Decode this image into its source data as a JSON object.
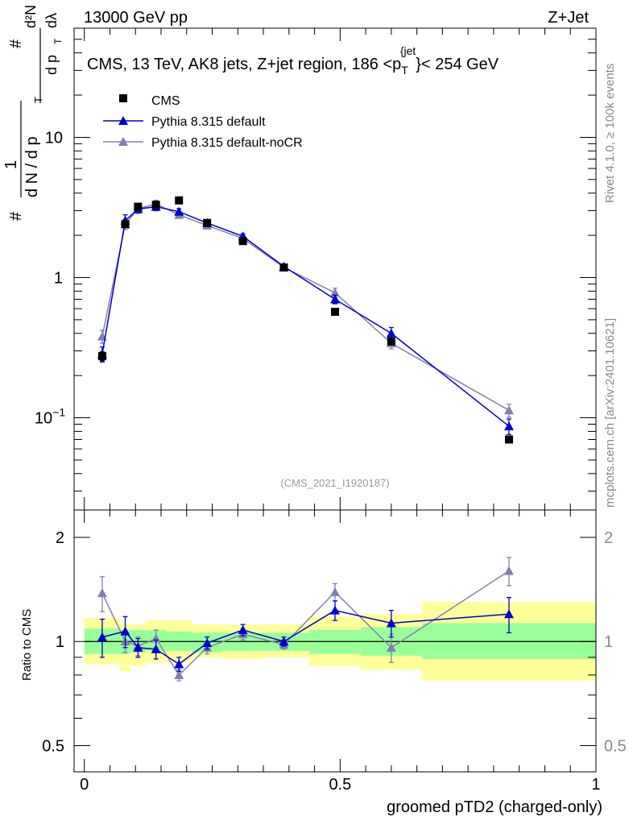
{
  "header": {
    "left": "13000 GeV pp",
    "right": "Z+Jet"
  },
  "side_labels": {
    "rivet": "Rivet 4.1.0, ≥ 100k events",
    "mcplots": "mcplots.cern.ch [arXiv:2401.10621]"
  },
  "watermark": "(CMS_2021_I1920187)",
  "colors": {
    "cms": "#000000",
    "default": "#0000cc",
    "nocr": "#8080b0",
    "band_inner": "#99ff99",
    "band_outer": "#ffff99"
  },
  "chart_data": [
    {
      "type": "scatter",
      "title": "CMS, 13 TeV, AK8 jets, Z+jet region, 186 <p_T^{jet}< 254 GeV",
      "title_parts": {
        "pre": "CMS, 13 TeV, AK8 jets, Z+jet region, 186 <p",
        "sub": "T",
        "sup": "{jet",
        "post": "}< 254 GeV"
      },
      "ylabel": "1/dN/dpT dN²/dpT dλ",
      "ylabel_parts": {
        "hash": "#",
        "one": "1",
        "den": "d N / d p",
        "num": "d²N",
        "den2": "d p",
        "lambda": "dλ",
        "t": "T"
      },
      "yscale": "log",
      "ylim": [
        0.022,
        60
      ],
      "xlim": [
        -0.02,
        1.0
      ],
      "grid": false,
      "y_ticks": [
        {
          "value": 0.1,
          "base": "10",
          "exp": "−1"
        },
        {
          "value": 1,
          "base": "1",
          "exp": ""
        },
        {
          "value": 10,
          "base": "10",
          "exp": ""
        }
      ],
      "legend": {
        "placement": "top-left",
        "entries": [
          "CMS",
          "Pythia 8.315 default",
          "Pythia 8.315 default-noCR"
        ]
      },
      "series": [
        {
          "name": "CMS",
          "marker": "square",
          "x": [
            0.035,
            0.08,
            0.105,
            0.14,
            0.185,
            0.24,
            0.31,
            0.39,
            0.49,
            0.6,
            0.83
          ],
          "y": [
            0.275,
            2.4,
            3.2,
            3.3,
            3.55,
            2.45,
            1.82,
            1.18,
            0.57,
            0.35,
            0.07
          ],
          "yerr": [
            0.02,
            0.1,
            0.1,
            0.1,
            0.1,
            0.08,
            0.06,
            0.04,
            0.02,
            0.015,
            0.003
          ]
        },
        {
          "name": "Pythia 8.315 default",
          "marker": "triangle",
          "x": [
            0.035,
            0.08,
            0.105,
            0.14,
            0.185,
            0.24,
            0.31,
            0.39,
            0.49,
            0.6,
            0.83
          ],
          "y": [
            0.285,
            2.55,
            3.08,
            3.2,
            2.95,
            2.45,
            1.97,
            1.2,
            0.7,
            0.4,
            0.087
          ],
          "yerr": [
            0.035,
            0.25,
            0.2,
            0.2,
            0.15,
            0.1,
            0.08,
            0.05,
            0.05,
            0.04,
            0.011
          ]
        },
        {
          "name": "Pythia 8.315 default-noCR",
          "marker": "triangle",
          "x": [
            0.035,
            0.08,
            0.105,
            0.14,
            0.185,
            0.24,
            0.31,
            0.39,
            0.49,
            0.6,
            0.83
          ],
          "y": [
            0.38,
            2.4,
            3.1,
            3.35,
            2.8,
            2.35,
            1.9,
            1.18,
            0.78,
            0.34,
            0.113
          ],
          "yerr": [
            0.04,
            0.2,
            0.2,
            0.2,
            0.15,
            0.1,
            0.08,
            0.05,
            0.06,
            0.03,
            0.012
          ]
        }
      ]
    },
    {
      "type": "scatter",
      "title": "",
      "ylabel": "Ratio to CMS",
      "xlabel": "groomed pTD2 (charged-only)",
      "yscale": "log",
      "ylim": [
        0.42,
        2.4
      ],
      "xlim": [
        -0.02,
        1.0
      ],
      "reference_line": 1.0,
      "y_ticks": [
        {
          "value": 0.5,
          "label": "0.5"
        },
        {
          "value": 1,
          "label": "1"
        },
        {
          "value": 2,
          "label": "2"
        }
      ],
      "x_ticks": [
        {
          "value": 0,
          "label": "0"
        },
        {
          "value": 0.5,
          "label": "0.5"
        },
        {
          "value": 1,
          "label": "1"
        }
      ],
      "bands": [
        {
          "x0": 0.0,
          "x1": 0.07,
          "inner": [
            0.92,
            1.09
          ],
          "outer": [
            0.86,
            1.17
          ]
        },
        {
          "x0": 0.07,
          "x1": 0.09,
          "inner": [
            0.92,
            1.08
          ],
          "outer": [
            0.82,
            1.13
          ]
        },
        {
          "x0": 0.09,
          "x1": 0.12,
          "inner": [
            0.93,
            1.08
          ],
          "outer": [
            0.85,
            1.12
          ]
        },
        {
          "x0": 0.12,
          "x1": 0.16,
          "inner": [
            0.94,
            1.08
          ],
          "outer": [
            0.87,
            1.15
          ]
        },
        {
          "x0": 0.16,
          "x1": 0.21,
          "inner": [
            0.94,
            1.07
          ],
          "outer": [
            0.87,
            1.15
          ]
        },
        {
          "x0": 0.21,
          "x1": 0.27,
          "inner": [
            0.93,
            1.06
          ],
          "outer": [
            0.9,
            1.12
          ]
        },
        {
          "x0": 0.27,
          "x1": 0.35,
          "inner": [
            0.94,
            1.06
          ],
          "outer": [
            0.89,
            1.12
          ]
        },
        {
          "x0": 0.35,
          "x1": 0.44,
          "inner": [
            0.94,
            1.06
          ],
          "outer": [
            0.9,
            1.12
          ]
        },
        {
          "x0": 0.44,
          "x1": 0.54,
          "inner": [
            0.92,
            1.08
          ],
          "outer": [
            0.85,
            1.18
          ]
        },
        {
          "x0": 0.54,
          "x1": 0.66,
          "inner": [
            0.91,
            1.1
          ],
          "outer": [
            0.83,
            1.2
          ]
        },
        {
          "x0": 0.66,
          "x1": 1.0,
          "inner": [
            0.89,
            1.13
          ],
          "outer": [
            0.77,
            1.3
          ]
        }
      ],
      "series": [
        {
          "name": "Pythia 8.315 default",
          "x": [
            0.035,
            0.08,
            0.105,
            0.14,
            0.185,
            0.24,
            0.31,
            0.39,
            0.49,
            0.6,
            0.83
          ],
          "y": [
            1.03,
            1.07,
            0.96,
            0.95,
            0.86,
            0.99,
            1.08,
            1.0,
            1.23,
            1.13,
            1.2
          ],
          "yerr": [
            0.13,
            0.11,
            0.06,
            0.06,
            0.04,
            0.04,
            0.04,
            0.03,
            0.08,
            0.1,
            0.14
          ]
        },
        {
          "name": "Pythia 8.315 default-noCR",
          "x": [
            0.035,
            0.08,
            0.105,
            0.14,
            0.185,
            0.24,
            0.31,
            0.39,
            0.49,
            0.6,
            0.83
          ],
          "y": [
            1.38,
            1.0,
            0.97,
            1.02,
            0.8,
            0.96,
            1.05,
            0.98,
            1.39,
            0.96,
            1.6
          ],
          "yerr": [
            0.16,
            0.07,
            0.06,
            0.06,
            0.03,
            0.04,
            0.04,
            0.03,
            0.08,
            0.09,
            0.15
          ]
        }
      ]
    }
  ]
}
